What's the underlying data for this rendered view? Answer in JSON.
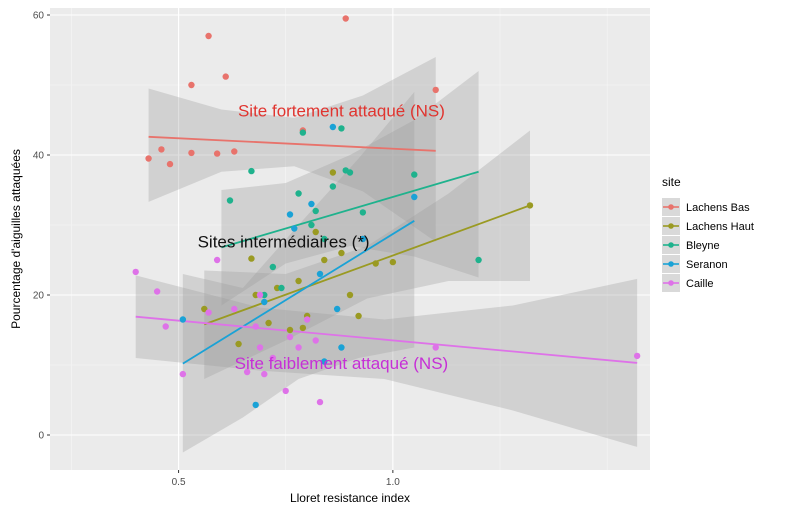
{
  "chart_data": {
    "type": "scatter",
    "title": "",
    "xlabel": "Lloret resistance index",
    "ylabel": "Pourcentage d'aiguilles attaquées",
    "xlim": [
      0.2,
      1.6
    ],
    "ylim": [
      -5,
      61
    ],
    "x_ticks": [
      0.5,
      1.0
    ],
    "y_ticks": [
      0,
      20,
      40,
      60
    ],
    "x_tick_labels": [
      "0.5",
      "1.0"
    ],
    "y_tick_labels": [
      "0",
      "20",
      "40",
      "60"
    ],
    "grid": true,
    "background": "#ebebeb",
    "legend": {
      "title": "site",
      "position": "right"
    },
    "series": [
      {
        "name": "Lachens Bas",
        "color": "#e8736c",
        "points": [
          [
            0.43,
            39.5
          ],
          [
            0.46,
            40.8
          ],
          [
            0.48,
            38.7
          ],
          [
            0.53,
            50
          ],
          [
            0.53,
            40.3
          ],
          [
            0.57,
            57
          ],
          [
            0.59,
            40.2
          ],
          [
            0.61,
            51.2
          ],
          [
            0.63,
            40.5
          ],
          [
            0.79,
            43.5
          ],
          [
            0.89,
            59.5
          ],
          [
            1.1,
            49.3
          ]
        ],
        "fit": {
          "x": [
            0.43,
            1.1
          ],
          "y": [
            42.6,
            40.6
          ]
        },
        "ci_upper": [
          [
            0.43,
            49.5
          ],
          [
            0.6,
            46.5
          ],
          [
            0.77,
            45.3
          ],
          [
            0.93,
            48.5
          ],
          [
            1.1,
            54
          ]
        ],
        "ci_lower": [
          [
            0.43,
            33.3
          ],
          [
            0.6,
            37.6
          ],
          [
            0.77,
            38.4
          ],
          [
            0.93,
            34.8
          ],
          [
            1.1,
            27.6
          ]
        ]
      },
      {
        "name": "Lachens Haut",
        "color": "#9a9a22",
        "points": [
          [
            0.56,
            18
          ],
          [
            0.64,
            13
          ],
          [
            0.67,
            25.2
          ],
          [
            0.68,
            20
          ],
          [
            0.71,
            16
          ],
          [
            0.73,
            21
          ],
          [
            0.76,
            15
          ],
          [
            0.78,
            22
          ],
          [
            0.79,
            15.3
          ],
          [
            0.8,
            17
          ],
          [
            0.82,
            29
          ],
          [
            0.84,
            25
          ],
          [
            0.86,
            37.5
          ],
          [
            0.88,
            26
          ],
          [
            0.9,
            20
          ],
          [
            0.92,
            17
          ],
          [
            0.96,
            24.5
          ],
          [
            1.0,
            24.7
          ],
          [
            1.32,
            32.8
          ]
        ],
        "fit": {
          "x": [
            0.56,
            1.32
          ],
          "y": [
            15.8,
            32.8
          ]
        },
        "ci_upper": [
          [
            0.56,
            23.5
          ],
          [
            0.75,
            23
          ],
          [
            0.94,
            27
          ],
          [
            1.13,
            34.5
          ],
          [
            1.32,
            43.5
          ]
        ],
        "ci_lower": [
          [
            0.56,
            8
          ],
          [
            0.75,
            13.5
          ],
          [
            0.94,
            19.5
          ],
          [
            1.13,
            22
          ],
          [
            1.32,
            22
          ]
        ]
      },
      {
        "name": "Bleyne",
        "color": "#1fb28d",
        "points": [
          [
            0.62,
            33.5
          ],
          [
            0.67,
            37.7
          ],
          [
            0.7,
            20
          ],
          [
            0.72,
            24
          ],
          [
            0.74,
            21
          ],
          [
            0.78,
            34.5
          ],
          [
            0.79,
            43.2
          ],
          [
            0.81,
            30
          ],
          [
            0.82,
            32
          ],
          [
            0.84,
            28
          ],
          [
            0.86,
            35.5
          ],
          [
            0.88,
            43.8
          ],
          [
            0.89,
            37.8
          ],
          [
            0.9,
            37.5
          ],
          [
            0.93,
            31.8
          ],
          [
            1.05,
            37.2
          ],
          [
            1.2,
            25
          ]
        ],
        "fit": {
          "x": [
            0.6,
            1.2
          ],
          "y": [
            26.8,
            37.6
          ]
        },
        "ci_upper": [
          [
            0.6,
            35
          ],
          [
            0.75,
            36
          ],
          [
            0.9,
            40
          ],
          [
            1.05,
            45
          ],
          [
            1.2,
            52
          ]
        ],
        "ci_lower": [
          [
            0.6,
            18.5
          ],
          [
            0.75,
            24.5
          ],
          [
            0.9,
            27
          ],
          [
            1.05,
            25.5
          ],
          [
            1.2,
            22.5
          ]
        ]
      },
      {
        "name": "Seranon",
        "color": "#1aa2d6",
        "points": [
          [
            0.51,
            16.5
          ],
          [
            0.68,
            4.3
          ],
          [
            0.7,
            19
          ],
          [
            0.76,
            31.5
          ],
          [
            0.77,
            29.5
          ],
          [
            0.81,
            33
          ],
          [
            0.83,
            23
          ],
          [
            0.84,
            10.5
          ],
          [
            0.86,
            44
          ],
          [
            0.87,
            18
          ],
          [
            0.88,
            12.5
          ],
          [
            0.93,
            28
          ],
          [
            1.05,
            34
          ]
        ],
        "fit": {
          "x": [
            0.51,
            1.05
          ],
          "y": [
            10.2,
            30.6
          ]
        },
        "ci_upper": [
          [
            0.51,
            23
          ],
          [
            0.65,
            21
          ],
          [
            0.78,
            30
          ],
          [
            0.92,
            39.5
          ],
          [
            1.05,
            49
          ]
        ],
        "ci_lower": [
          [
            0.51,
            -2.5
          ],
          [
            0.65,
            2.5
          ],
          [
            0.78,
            8
          ],
          [
            0.92,
            11
          ],
          [
            1.05,
            12.5
          ]
        ]
      },
      {
        "name": "Caille",
        "color": "#de72e8",
        "points": [
          [
            0.4,
            23.3
          ],
          [
            0.45,
            20.5
          ],
          [
            0.47,
            15.5
          ],
          [
            0.51,
            8.7
          ],
          [
            0.57,
            17.5
          ],
          [
            0.59,
            25
          ],
          [
            0.63,
            18
          ],
          [
            0.66,
            9
          ],
          [
            0.68,
            15.5
          ],
          [
            0.69,
            20
          ],
          [
            0.69,
            12.5
          ],
          [
            0.7,
            8.7
          ],
          [
            0.72,
            11
          ],
          [
            0.75,
            6.3
          ],
          [
            0.76,
            14
          ],
          [
            0.78,
            12.5
          ],
          [
            0.8,
            16.5
          ],
          [
            0.82,
            13.5
          ],
          [
            0.83,
            4.7
          ],
          [
            1.1,
            12.5
          ],
          [
            1.57,
            11.3
          ]
        ],
        "fit": {
          "x": [
            0.4,
            1.57
          ],
          "y": [
            16.9,
            10.3
          ]
        },
        "ci_upper": [
          [
            0.4,
            22.8
          ],
          [
            0.69,
            18.2
          ],
          [
            0.98,
            16.5
          ],
          [
            1.28,
            18.5
          ],
          [
            1.57,
            22.3
          ]
        ],
        "ci_lower": [
          [
            0.4,
            11
          ],
          [
            0.69,
            9.2
          ],
          [
            0.98,
            8
          ],
          [
            1.28,
            3.5
          ],
          [
            1.57,
            -1.7
          ]
        ]
      }
    ],
    "annotations": [
      {
        "text": "Site fortement attaqué (NS)",
        "x": 0.88,
        "y": 45.5,
        "color": "#e0342f"
      },
      {
        "text": "Sites intermédiaires (*)",
        "x": 0.745,
        "y": 26.8,
        "color": "#111111"
      },
      {
        "text": "Site faiblement attaqué (NS)",
        "x": 0.88,
        "y": 9.4,
        "color": "#c62fd6"
      }
    ]
  }
}
